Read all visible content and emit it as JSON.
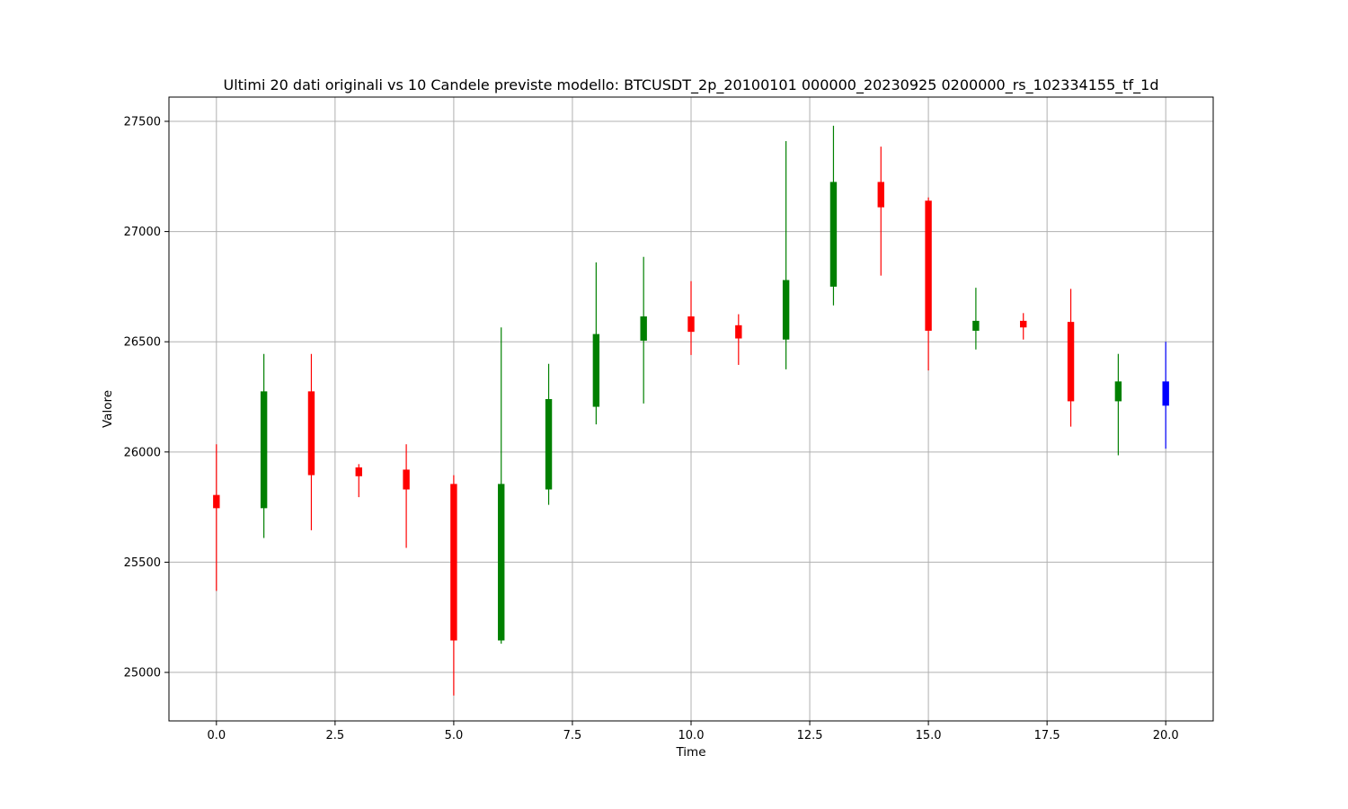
{
  "chart_data": {
    "type": "candlestick",
    "title": "Ultimi 20 dati originali vs 10 Candele previste modello: BTCUSDT_2p_20100101 000000_20230925 0200000_rs_102334155_tf_1d",
    "xlabel": "Time",
    "ylabel": "Valore",
    "xlim": [
      -1.0,
      21.0
    ],
    "ylim": [
      24780,
      27610
    ],
    "xticks": [
      0.0,
      2.5,
      5.0,
      7.5,
      10.0,
      12.5,
      15.0,
      17.5,
      20.0
    ],
    "xtick_labels": [
      "0.0",
      "2.5",
      "5.0",
      "7.5",
      "10.0",
      "12.5",
      "15.0",
      "17.5",
      "20.0"
    ],
    "yticks": [
      25000,
      25500,
      26000,
      26500,
      27000,
      27500
    ],
    "ytick_labels": [
      "25000",
      "25500",
      "26000",
      "26500",
      "27000",
      "27500"
    ],
    "grid": true,
    "colors": {
      "up": "#008000",
      "down": "#ff0000",
      "predicted": "#0000ff",
      "grid": "#b0b0b0",
      "axes": "#000000"
    },
    "candles": [
      {
        "t": 0,
        "open": 25805,
        "high": 26035,
        "low": 25370,
        "close": 25745,
        "color": "red"
      },
      {
        "t": 1,
        "open": 25745,
        "high": 26445,
        "low": 25610,
        "close": 26275,
        "color": "green"
      },
      {
        "t": 2,
        "open": 26275,
        "high": 26445,
        "low": 25645,
        "close": 25895,
        "color": "red"
      },
      {
        "t": 3,
        "open": 25930,
        "high": 25945,
        "low": 25795,
        "close": 25890,
        "color": "red"
      },
      {
        "t": 4,
        "open": 25920,
        "high": 26035,
        "low": 25565,
        "close": 25830,
        "color": "red"
      },
      {
        "t": 5,
        "open": 25855,
        "high": 25895,
        "low": 24895,
        "close": 25145,
        "color": "red"
      },
      {
        "t": 6,
        "open": 25145,
        "high": 26565,
        "low": 25130,
        "close": 25855,
        "color": "green"
      },
      {
        "t": 7,
        "open": 25830,
        "high": 26400,
        "low": 25760,
        "close": 26240,
        "color": "green"
      },
      {
        "t": 8,
        "open": 26205,
        "high": 26860,
        "low": 26125,
        "close": 26535,
        "color": "green"
      },
      {
        "t": 9,
        "open": 26505,
        "high": 26885,
        "low": 26220,
        "close": 26615,
        "color": "green"
      },
      {
        "t": 10,
        "open": 26615,
        "high": 26775,
        "low": 26440,
        "close": 26545,
        "color": "red"
      },
      {
        "t": 11,
        "open": 26575,
        "high": 26625,
        "low": 26395,
        "close": 26515,
        "color": "red"
      },
      {
        "t": 12,
        "open": 26510,
        "high": 27410,
        "low": 26375,
        "close": 26780,
        "color": "green"
      },
      {
        "t": 13,
        "open": 26750,
        "high": 27480,
        "low": 26665,
        "close": 27225,
        "color": "green"
      },
      {
        "t": 14,
        "open": 27225,
        "high": 27385,
        "low": 26800,
        "close": 27110,
        "color": "red"
      },
      {
        "t": 15,
        "open": 27140,
        "high": 27155,
        "low": 26370,
        "close": 26550,
        "color": "red"
      },
      {
        "t": 16,
        "open": 26550,
        "high": 26745,
        "low": 26465,
        "close": 26595,
        "color": "green"
      },
      {
        "t": 17,
        "open": 26595,
        "high": 26630,
        "low": 26510,
        "close": 26565,
        "color": "red"
      },
      {
        "t": 18,
        "open": 26590,
        "high": 26740,
        "low": 26115,
        "close": 26230,
        "color": "red"
      },
      {
        "t": 19,
        "open": 26230,
        "high": 26445,
        "low": 25985,
        "close": 26320,
        "color": "green"
      },
      {
        "t": 20,
        "open": 26320,
        "high": 26500,
        "low": 26015,
        "close": 26210,
        "color": "blue"
      }
    ]
  }
}
